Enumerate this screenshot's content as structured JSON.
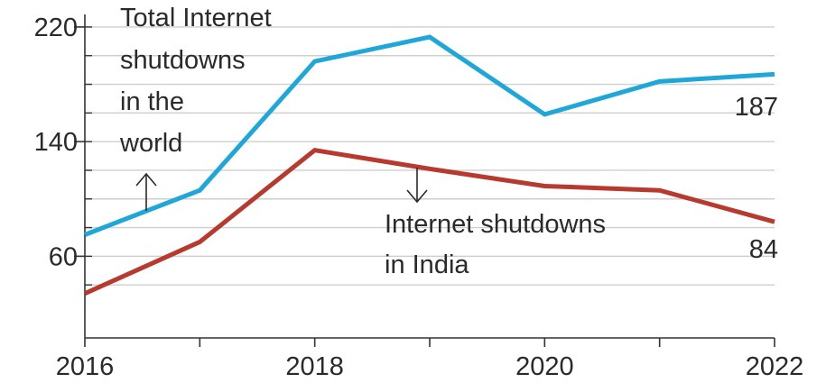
{
  "chart_data": {
    "type": "line",
    "x": [
      2016,
      2017,
      2018,
      2019,
      2020,
      2021,
      2022
    ],
    "x_tick_labels": [
      "2016",
      "2018",
      "2020",
      "2022"
    ],
    "y_tick_labels": [
      "220",
      "140",
      "60"
    ],
    "y_ticks": [
      220,
      140,
      60
    ],
    "ylim": [
      3,
      225
    ],
    "xlim": [
      2016,
      2022
    ],
    "grid": true,
    "series": [
      {
        "key": "world",
        "name": "Total Internet shutdowns in the world",
        "values": [
          75,
          106,
          196,
          213,
          159,
          182,
          187
        ],
        "color": "#1ea7d8"
      },
      {
        "key": "india",
        "name": "Internet shutdowns in India",
        "values": [
          34,
          70,
          134,
          121,
          109,
          106,
          84
        ],
        "color": "#b8392e"
      }
    ],
    "annotations": {
      "world_lines": [
        "Total Internet",
        "shutdowns",
        "in the",
        "world"
      ],
      "india_lines": [
        "Internet shutdowns",
        "in India"
      ],
      "world_end_label": "187",
      "india_end_label": "84"
    }
  }
}
